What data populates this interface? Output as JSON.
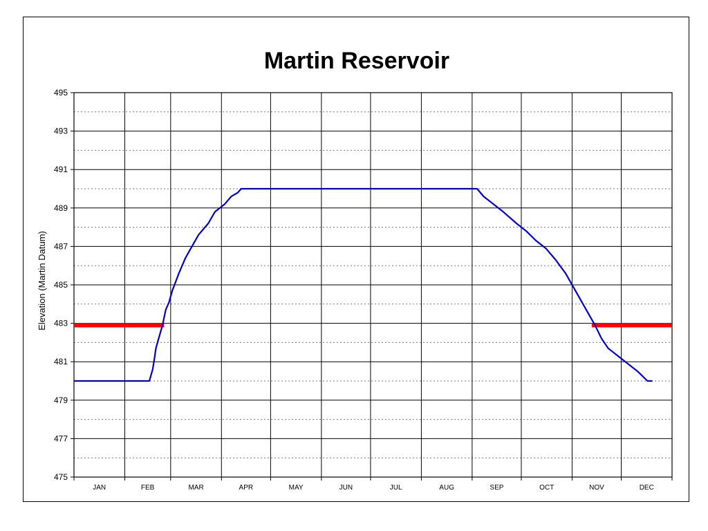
{
  "chart_data": {
    "type": "line",
    "title": "Martin Reservoir",
    "ylabel": "Elevation (Martin Datum)",
    "xlabel": "",
    "ylim": [
      475,
      495
    ],
    "y_major_step": 2,
    "y_minor_dotted": true,
    "x_range_days": [
      0,
      365
    ],
    "month_labels": [
      "JAN",
      "FEB",
      "MAR",
      "APR",
      "MAY",
      "JUN",
      "JUL",
      "AUG",
      "SEP",
      "OCT",
      "NOV",
      "DEC"
    ],
    "month_boundaries_days": [
      0,
      31,
      59,
      90,
      120,
      151,
      181,
      212,
      243,
      273,
      304,
      334,
      365
    ],
    "series": [
      {
        "color": "#0000cc",
        "points": [
          [
            0,
            480
          ],
          [
            46,
            480
          ],
          [
            47,
            480.3
          ],
          [
            48,
            480.6
          ],
          [
            49,
            481.1
          ],
          [
            50,
            481.7
          ],
          [
            52,
            482.3
          ],
          [
            54,
            482.9
          ],
          [
            56,
            483.7
          ],
          [
            58,
            484.1
          ],
          [
            60,
            484.7
          ],
          [
            64,
            485.6
          ],
          [
            68,
            486.4
          ],
          [
            72,
            487.0
          ],
          [
            76,
            487.6
          ],
          [
            82,
            488.2
          ],
          [
            86,
            488.8
          ],
          [
            92,
            489.2
          ],
          [
            96,
            489.6
          ],
          [
            100,
            489.8
          ],
          [
            102,
            490.0
          ],
          [
            180,
            490.0
          ],
          [
            246,
            490.0
          ],
          [
            250,
            489.6
          ],
          [
            256,
            489.2
          ],
          [
            262,
            488.8
          ],
          [
            270,
            488.2
          ],
          [
            276,
            487.8
          ],
          [
            282,
            487.3
          ],
          [
            288,
            486.9
          ],
          [
            294,
            486.3
          ],
          [
            300,
            485.6
          ],
          [
            306,
            484.7
          ],
          [
            312,
            483.8
          ],
          [
            318,
            482.9
          ],
          [
            322,
            482.2
          ],
          [
            326,
            481.7
          ],
          [
            332,
            481.3
          ],
          [
            338,
            480.9
          ],
          [
            344,
            480.5
          ],
          [
            350,
            480.0
          ],
          [
            353,
            480.0
          ]
        ]
      },
      {
        "color": "#ff0000",
        "points": [
          [
            0,
            482.9
          ],
          [
            55,
            482.9
          ]
        ]
      },
      {
        "color": "#ff0000",
        "points": [
          [
            316,
            482.9
          ],
          [
            365,
            482.9
          ]
        ]
      }
    ]
  }
}
